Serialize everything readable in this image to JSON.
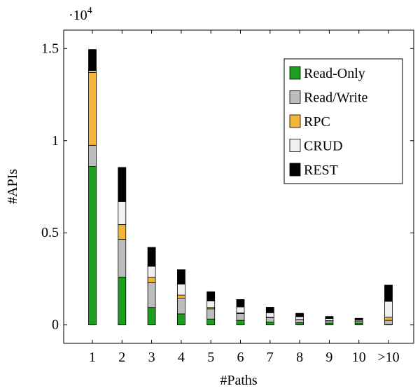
{
  "chart_data": {
    "type": "bar",
    "stacked": true,
    "categories": [
      "1",
      "2",
      "3",
      "4",
      "5",
      "6",
      "7",
      "8",
      "9",
      "10",
      ">10"
    ],
    "xlabel": "#Paths",
    "ylabel": "#APIs",
    "ylim": [
      -1000,
      16000
    ],
    "yticks": [
      0,
      5000,
      10000,
      15000
    ],
    "ytick_labels": [
      "0",
      "0.5",
      "1",
      "1.5"
    ],
    "y_scale_label_base": "·10",
    "y_scale_label_exp": "4",
    "grid": false,
    "legend_position": "top-right",
    "series": [
      {
        "name": "Read-Only",
        "color": "#1e9e1e",
        "values": [
          8600,
          2600,
          950,
          600,
          320,
          250,
          150,
          120,
          100,
          100,
          20
        ]
      },
      {
        "name": "Read/Write",
        "color": "#bdbdbd",
        "values": [
          1150,
          2050,
          1350,
          850,
          550,
          370,
          250,
          170,
          120,
          110,
          230
        ]
      },
      {
        "name": "RPC",
        "color": "#f2b53a",
        "values": [
          3950,
          800,
          280,
          170,
          80,
          30,
          20,
          10,
          10,
          10,
          180
        ]
      },
      {
        "name": "CRUD",
        "color": "#f0f0f0",
        "values": [
          100,
          1250,
          600,
          600,
          350,
          330,
          240,
          150,
          120,
          60,
          850
        ]
      },
      {
        "name": "REST",
        "color": "#000000",
        "values": [
          1150,
          1850,
          1030,
          780,
          500,
          400,
          300,
          180,
          110,
          80,
          880
        ]
      }
    ]
  }
}
